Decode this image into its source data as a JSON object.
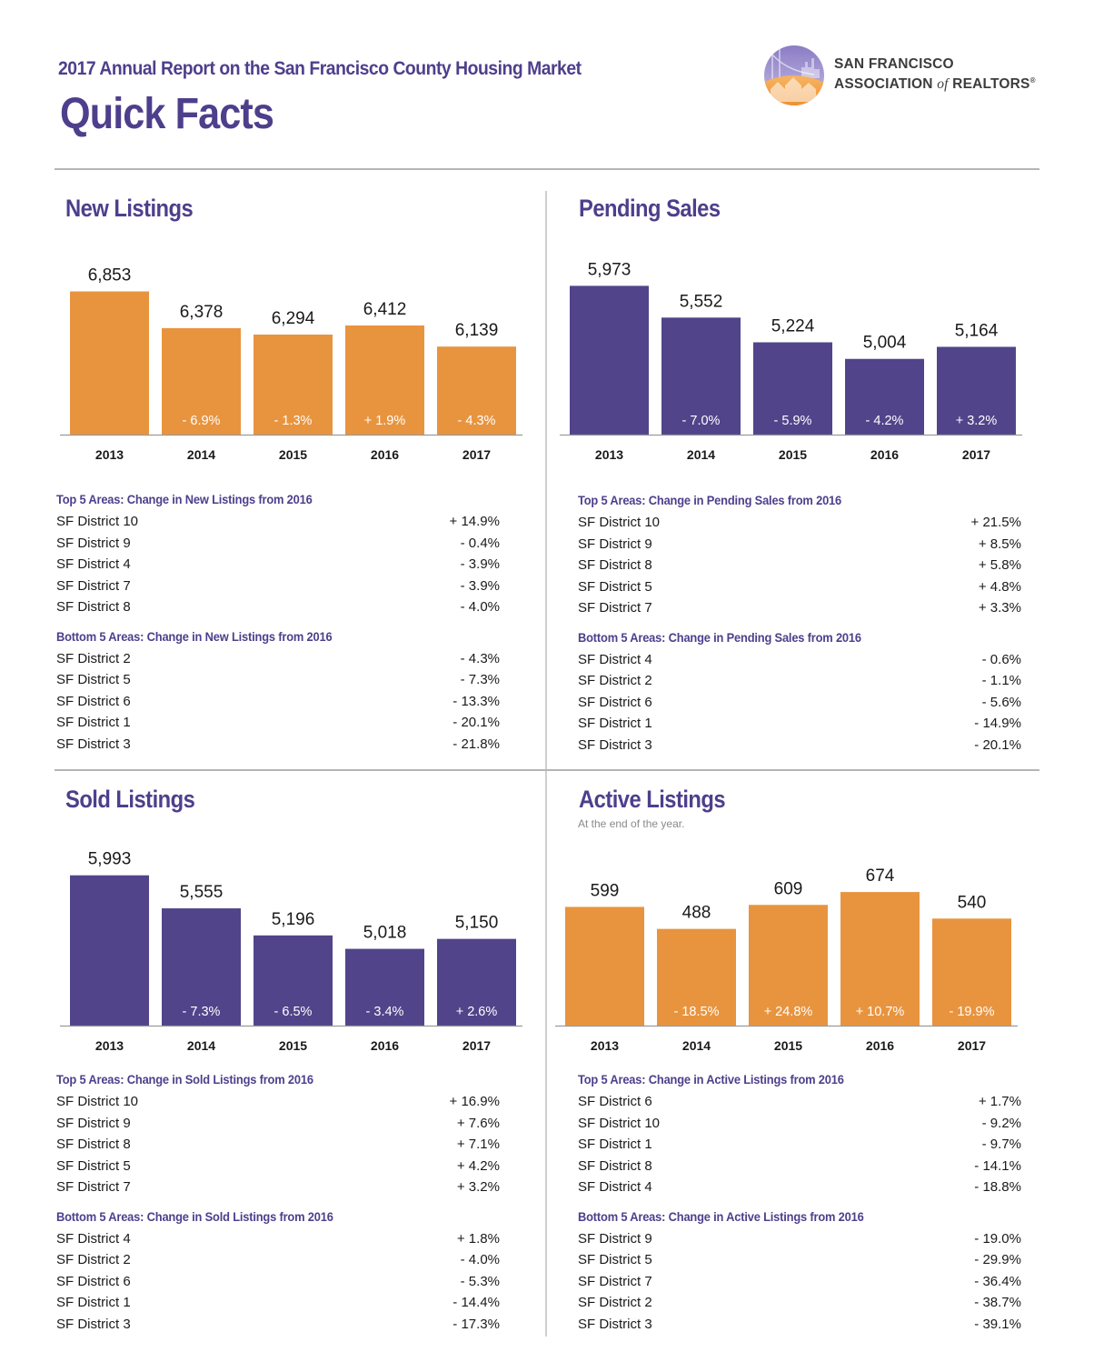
{
  "header": {
    "subtitle": "2017 Annual Report on the San Francisco County Housing Market",
    "title": "Quick Facts",
    "logo_line1": "SAN FRANCISCO",
    "logo_line2a": "ASSOCIATION ",
    "logo_line2b": "of",
    "logo_line2c": " REALTORS",
    "logo_mark": "®"
  },
  "colors": {
    "purple": "#52448a",
    "orange": "#e8943f",
    "title_purple": "#4e3f8c"
  },
  "sections": [
    {
      "title": "New Listings",
      "note": "",
      "top_heading": "Top 5 Areas: Change in New Listings from 2016",
      "top": [
        {
          "area": "SF District 10",
          "change": "+ 14.9%"
        },
        {
          "area": "SF District 9",
          "change": "- 0.4%"
        },
        {
          "area": "SF District 4",
          "change": "- 3.9%"
        },
        {
          "area": "SF District 7",
          "change": "- 3.9%"
        },
        {
          "area": "SF District 8",
          "change": "- 4.0%"
        }
      ],
      "bottom_heading": "Bottom 5 Areas: Change in New Listings from 2016",
      "bottom": [
        {
          "area": "SF District 2",
          "change": "- 4.3%"
        },
        {
          "area": "SF District 5",
          "change": "- 7.3%"
        },
        {
          "area": "SF District 6",
          "change": "- 13.3%"
        },
        {
          "area": "SF District 1",
          "change": "- 20.1%"
        },
        {
          "area": "SF District 3",
          "change": "- 21.8%"
        }
      ]
    },
    {
      "title": "Pending Sales",
      "note": "",
      "top_heading": "Top 5 Areas: Change in Pending Sales from 2016",
      "top": [
        {
          "area": "SF District 10",
          "change": "+ 21.5%"
        },
        {
          "area": "SF District 9",
          "change": "+ 8.5%"
        },
        {
          "area": "SF District 8",
          "change": "+ 5.8%"
        },
        {
          "area": "SF District 5",
          "change": "+ 4.8%"
        },
        {
          "area": "SF District 7",
          "change": "+ 3.3%"
        }
      ],
      "bottom_heading": "Bottom 5 Areas: Change in Pending Sales from 2016",
      "bottom": [
        {
          "area": "SF District 4",
          "change": "- 0.6%"
        },
        {
          "area": "SF District 2",
          "change": "- 1.1%"
        },
        {
          "area": "SF District 6",
          "change": "- 5.6%"
        },
        {
          "area": "SF District 1",
          "change": "- 14.9%"
        },
        {
          "area": "SF District 3",
          "change": "- 20.1%"
        }
      ]
    },
    {
      "title": "Sold Listings",
      "note": "",
      "top_heading": "Top 5 Areas: Change in Sold Listings from 2016",
      "top": [
        {
          "area": "SF District 10",
          "change": "+ 16.9%"
        },
        {
          "area": "SF District 9",
          "change": "+ 7.6%"
        },
        {
          "area": "SF District 8",
          "change": "+ 7.1%"
        },
        {
          "area": "SF District 5",
          "change": "+ 4.2%"
        },
        {
          "area": "SF District 7",
          "change": "+ 3.2%"
        }
      ],
      "bottom_heading": "Bottom 5 Areas: Change in Sold Listings from 2016",
      "bottom": [
        {
          "area": "SF District 4",
          "change": "+ 1.8%"
        },
        {
          "area": "SF District 2",
          "change": "- 4.0%"
        },
        {
          "area": "SF District 6",
          "change": "- 5.3%"
        },
        {
          "area": "SF District 1",
          "change": "- 14.4%"
        },
        {
          "area": "SF District 3",
          "change": "- 17.3%"
        }
      ]
    },
    {
      "title": "Active Listings",
      "note": "At the end of the year.",
      "top_heading": "Top 5 Areas: Change in Active Listings from 2016",
      "top": [
        {
          "area": "SF District 6",
          "change": "+ 1.7%"
        },
        {
          "area": "SF District 10",
          "change": "- 9.2%"
        },
        {
          "area": "SF District 1",
          "change": "- 9.7%"
        },
        {
          "area": "SF District 8",
          "change": "- 14.1%"
        },
        {
          "area": "SF District 4",
          "change": "- 18.8%"
        }
      ],
      "bottom_heading": "Bottom 5 Areas: Change in Active Listings from 2016",
      "bottom": [
        {
          "area": "SF District 9",
          "change": "- 19.0%"
        },
        {
          "area": "SF District 5",
          "change": "- 29.9%"
        },
        {
          "area": "SF District 7",
          "change": "- 36.4%"
        },
        {
          "area": "SF District 2",
          "change": "- 38.7%"
        },
        {
          "area": "SF District 3",
          "change": "- 39.1%"
        }
      ]
    }
  ],
  "chart_data": [
    {
      "type": "bar",
      "title": "New Listings",
      "categories": [
        "2013",
        "2014",
        "2015",
        "2016",
        "2017"
      ],
      "values": [
        6853,
        6378,
        6294,
        6412,
        6139
      ],
      "value_labels": [
        "6,853",
        "6,378",
        "6,294",
        "6,412",
        "6,139"
      ],
      "change_labels": [
        "",
        "- 6.9%",
        "- 1.3%",
        "+ 1.9%",
        "- 4.3%"
      ],
      "color": "#e8943f",
      "xlabel": "",
      "ylabel": "",
      "ylim": [
        5000,
        7000
      ],
      "grid": false,
      "legend": "none"
    },
    {
      "type": "bar",
      "title": "Pending Sales",
      "categories": [
        "2013",
        "2014",
        "2015",
        "2016",
        "2017"
      ],
      "values": [
        5973,
        5552,
        5224,
        5004,
        5164
      ],
      "value_labels": [
        "5,973",
        "5,552",
        "5,224",
        "5,004",
        "5,164"
      ],
      "change_labels": [
        "",
        "- 7.0%",
        "- 5.9%",
        "- 4.2%",
        "+ 3.2%"
      ],
      "color": "#52448a",
      "xlabel": "",
      "ylabel": "",
      "ylim": [
        4000,
        6050
      ],
      "grid": false,
      "legend": "none"
    },
    {
      "type": "bar",
      "title": "Sold Listings",
      "categories": [
        "2013",
        "2014",
        "2015",
        "2016",
        "2017"
      ],
      "values": [
        5993,
        5555,
        5196,
        5018,
        5150
      ],
      "value_labels": [
        "5,993",
        "5,555",
        "5,196",
        "5,018",
        "5,150"
      ],
      "change_labels": [
        "",
        "- 7.3%",
        "- 6.5%",
        "- 3.4%",
        "+ 2.6%"
      ],
      "color": "#52448a",
      "xlabel": "",
      "ylabel": "",
      "ylim": [
        4000,
        6050
      ],
      "grid": false,
      "legend": "none"
    },
    {
      "type": "bar",
      "title": "Active Listings",
      "subtitle": "At the end of the year.",
      "categories": [
        "2013",
        "2014",
        "2015",
        "2016",
        "2017"
      ],
      "values": [
        599,
        488,
        609,
        674,
        540
      ],
      "value_labels": [
        "599",
        "488",
        "609",
        "674",
        "540"
      ],
      "change_labels": [
        "",
        "- 18.5%",
        "+ 24.8%",
        "+ 10.7%",
        "- 19.9%"
      ],
      "color": "#e8943f",
      "xlabel": "",
      "ylabel": "",
      "ylim": [
        0,
        780
      ],
      "grid": false,
      "legend": "none"
    }
  ]
}
